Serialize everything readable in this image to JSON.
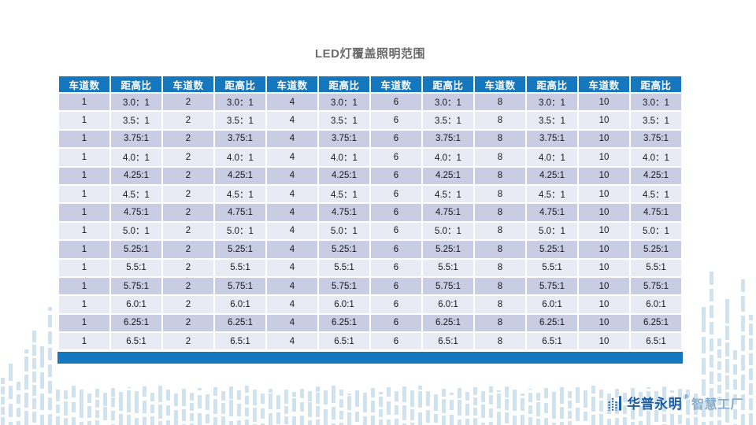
{
  "page": {
    "title": "LED灯覆盖照明范围"
  },
  "table": {
    "header": {
      "lanes": "车道数",
      "ratio": "距高比"
    },
    "lane_counts": [
      "1",
      "2",
      "4",
      "6",
      "8",
      "10"
    ],
    "ratios": [
      "3.0：1",
      "3.5：1",
      "3.75:1",
      "4.0：1",
      "4.25:1",
      "4.5：1",
      "4.75:1",
      "5.0：1",
      "5.25:1",
      "5.5:1",
      "5.75:1",
      "6.0:1",
      "6.25:1",
      "6.5:1"
    ]
  },
  "footer": {
    "brand": "华普永明",
    "trademark": "®",
    "suffix": "智慧工厂"
  },
  "colors": {
    "header_bg": "#1577BD",
    "row_odd": "#C9CDE3",
    "row_even": "#E9EBF4",
    "decor": "#CDE3F1",
    "title_text": "#6B6B6B",
    "brand_text": "#1A5CA3",
    "suffix_text": "#86ADCF"
  }
}
